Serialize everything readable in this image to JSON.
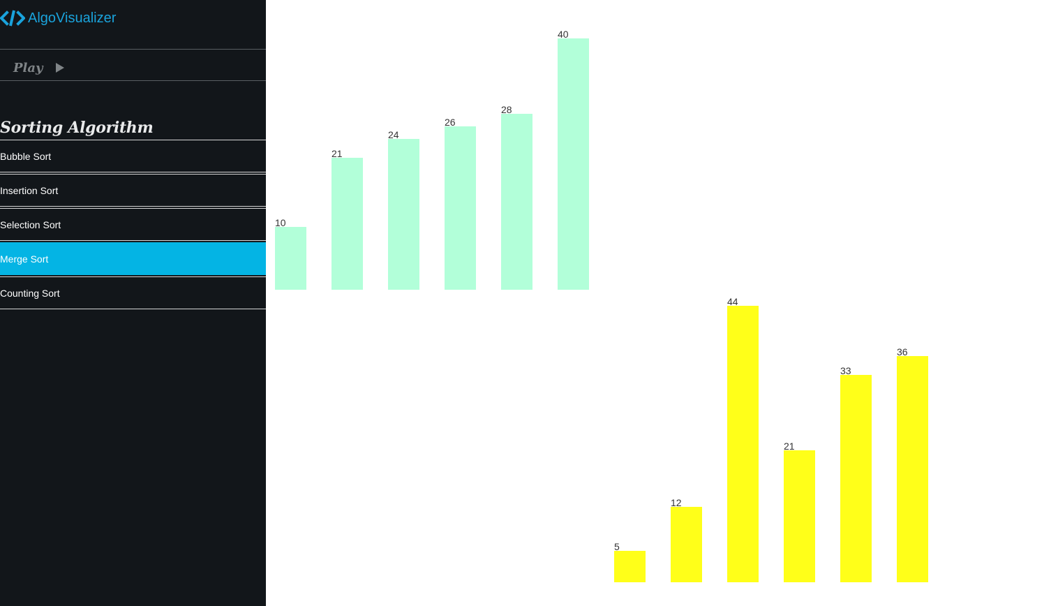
{
  "app": {
    "title": "AlgoVisualizer",
    "brand_icon": "code-icon",
    "accent_color": "#1aa3dc"
  },
  "controls": {
    "play_label": "Play",
    "play_icon": "play-icon"
  },
  "sidebar": {
    "section_title": "Sorting Algorithm",
    "items": [
      {
        "label": "Bubble Sort",
        "active": false
      },
      {
        "label": "Insertion Sort",
        "active": false
      },
      {
        "label": "Selection Sort",
        "active": false
      },
      {
        "label": "Merge Sort",
        "active": true
      },
      {
        "label": "Counting Sort",
        "active": false
      }
    ],
    "active_color": "#04b4e4"
  },
  "chart_data": [
    {
      "type": "bar",
      "values": [
        10,
        21,
        24,
        26,
        28,
        40
      ],
      "color": "#b2ffd9"
    },
    {
      "type": "bar",
      "values": [
        5,
        12,
        44,
        21,
        33,
        36
      ],
      "color": "#ffff19"
    }
  ]
}
